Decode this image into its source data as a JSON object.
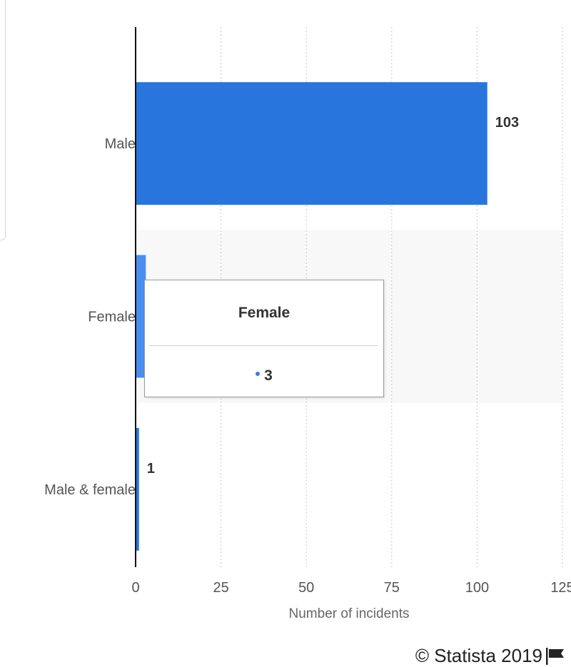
{
  "chart_data": {
    "type": "bar",
    "orientation": "horizontal",
    "categories": [
      "Male",
      "Female",
      "Male & female"
    ],
    "values": [
      103,
      3,
      1
    ],
    "data_labels": [
      "103",
      "",
      "1"
    ],
    "xlabel": "Number of incidents",
    "xlim": [
      0,
      125
    ],
    "x_ticks": [
      0,
      25,
      50,
      75,
      100,
      125
    ],
    "grid": true,
    "highlighted_category": "Female",
    "colors": {
      "bar": "#2876dd",
      "bar_highlight": "#4a8ff0",
      "band": "#f8f8f8",
      "grid": "#c8c8c8"
    }
  },
  "tooltip": {
    "title": "Female",
    "value": "3"
  },
  "credit": {
    "text": "© Statista 2019"
  }
}
